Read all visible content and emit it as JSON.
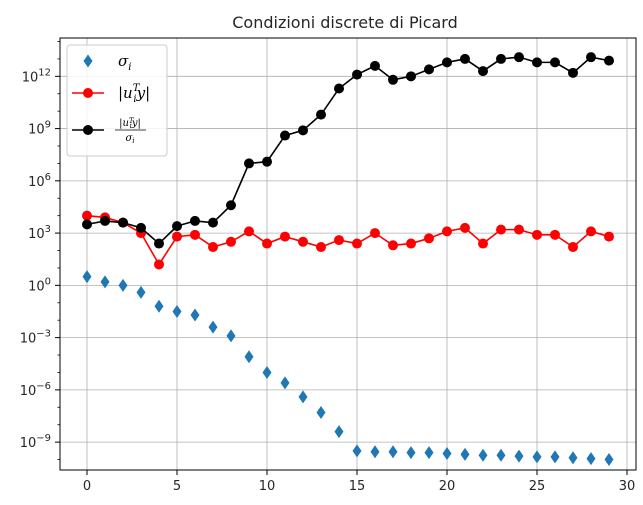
{
  "chart_data": {
    "type": "scatter",
    "title": "Condizioni discrete di Picard",
    "xlabel": "",
    "ylabel": "",
    "yscale": "log",
    "xlim": [
      -1.5,
      30.5
    ],
    "ylim_exp": [
      -10.6,
      14.2
    ],
    "grid": true,
    "legend_position": "top-left",
    "x_ticks": [
      {
        "value": 0,
        "label": "0"
      },
      {
        "value": 5,
        "label": "5"
      },
      {
        "value": 10,
        "label": "10"
      },
      {
        "value": 15,
        "label": "15"
      },
      {
        "value": 20,
        "label": "20"
      },
      {
        "value": 25,
        "label": "25"
      },
      {
        "value": 30,
        "label": "30"
      }
    ],
    "y_ticks": [
      {
        "exp": 12,
        "base": "10",
        "sup": "12"
      },
      {
        "exp": 9,
        "base": "10",
        "sup": "9"
      },
      {
        "exp": 6,
        "base": "10",
        "sup": "6"
      },
      {
        "exp": 3,
        "base": "10",
        "sup": "3"
      },
      {
        "exp": 0,
        "base": "10",
        "sup": "0"
      },
      {
        "exp": -3,
        "base": "10",
        "sup": "−3"
      },
      {
        "exp": -6,
        "base": "10",
        "sup": "−6"
      },
      {
        "exp": -9,
        "base": "10",
        "sup": "−9"
      }
    ],
    "x": [
      0,
      1,
      2,
      3,
      4,
      5,
      6,
      7,
      8,
      9,
      10,
      11,
      12,
      13,
      14,
      15,
      16,
      17,
      18,
      19,
      20,
      21,
      22,
      23,
      24,
      25,
      26,
      27,
      28,
      29
    ],
    "series": [
      {
        "key": "sigma",
        "name": "σi",
        "color": "#1f77b4",
        "marker": "diamond",
        "line": false,
        "log10_values": [
          0.5,
          0.2,
          0.0,
          -0.4,
          -1.2,
          -1.5,
          -1.7,
          -2.4,
          -2.9,
          -4.1,
          -5.0,
          -5.6,
          -6.4,
          -7.3,
          -8.4,
          -9.5,
          -9.55,
          -9.55,
          -9.6,
          -9.6,
          -9.65,
          -9.7,
          -9.75,
          -9.75,
          -9.8,
          -9.85,
          -9.85,
          -9.9,
          -9.95,
          -10.0
        ]
      },
      {
        "key": "uty",
        "name": "|uᵢᵀy|",
        "color": "#ff0000",
        "marker": "circle",
        "line": true,
        "log10_values": [
          4.0,
          3.9,
          3.6,
          3.0,
          1.2,
          2.8,
          2.9,
          2.2,
          2.5,
          3.1,
          2.4,
          2.8,
          2.5,
          2.2,
          2.6,
          2.4,
          3.0,
          2.3,
          2.4,
          2.7,
          3.1,
          3.3,
          2.4,
          3.2,
          3.2,
          2.9,
          2.9,
          2.2,
          3.1,
          2.8
        ]
      },
      {
        "key": "ratio",
        "name": "|uᵢᵀy| / σi",
        "color": "#000000",
        "marker": "circle",
        "line": true,
        "log10_values": [
          3.5,
          3.7,
          3.6,
          3.3,
          2.4,
          3.4,
          3.7,
          3.6,
          4.6,
          7.0,
          7.1,
          8.6,
          8.9,
          9.8,
          11.3,
          12.1,
          12.6,
          11.8,
          12.0,
          12.4,
          12.8,
          13.0,
          12.3,
          13.0,
          13.1,
          12.8,
          12.8,
          12.2,
          13.1,
          12.9
        ]
      }
    ],
    "legend": [
      {
        "series": "sigma",
        "text": "σ",
        "sub": "i"
      },
      {
        "series": "uty",
        "text_pre": "|u",
        "sub": "i",
        "sup": "T",
        "text_post": "y|"
      },
      {
        "series": "ratio",
        "num_pre": "|u",
        "num_sub": "i",
        "num_sup": "T",
        "num_post": "y|",
        "den": "σ",
        "den_sub": "i"
      }
    ]
  }
}
